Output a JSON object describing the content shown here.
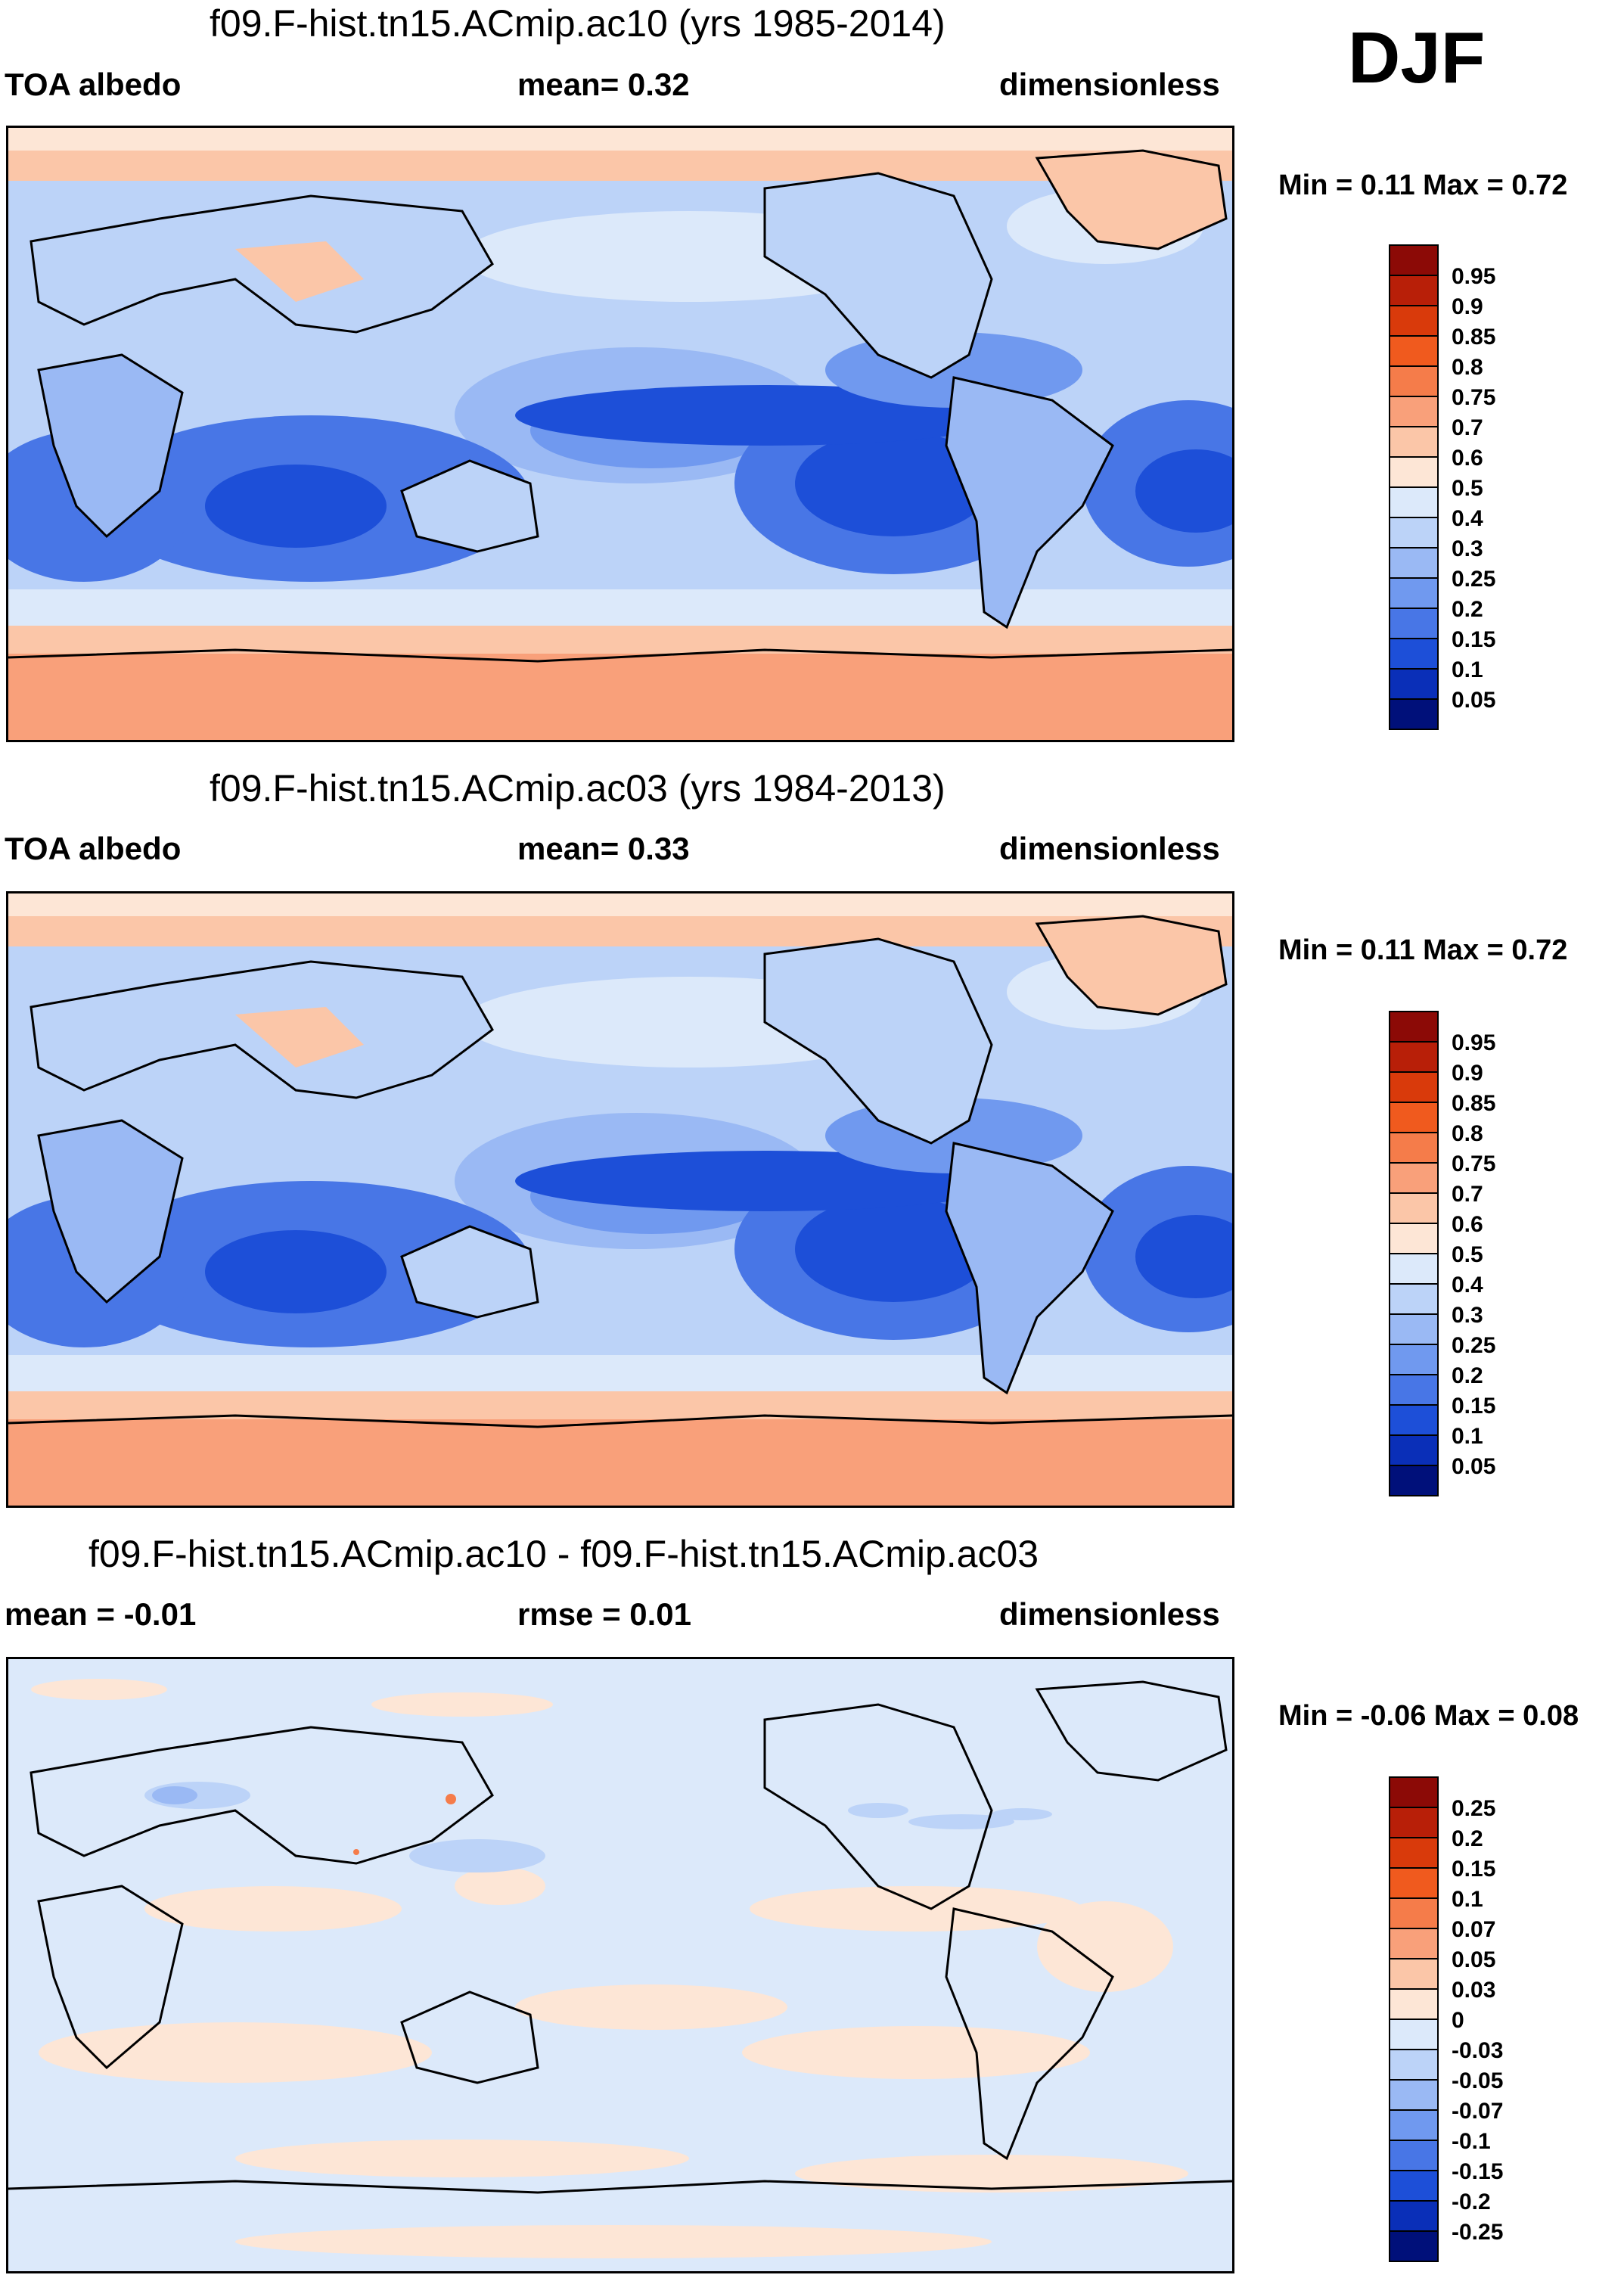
{
  "season": "DJF",
  "colorbars": {
    "abs": {
      "labels": [
        "0.95",
        "0.9",
        "0.85",
        "0.8",
        "0.75",
        "0.7",
        "0.6",
        "0.5",
        "0.4",
        "0.3",
        "0.25",
        "0.2",
        "0.15",
        "0.1",
        "0.05"
      ],
      "colors": [
        "#8c0a06",
        "#b81f08",
        "#d93a0b",
        "#f05a1e",
        "#f57c4a",
        "#f9a07a",
        "#fbc6a8",
        "#fde6d6",
        "#dce9fa",
        "#bcd3f8",
        "#9ab9f4",
        "#7099ef",
        "#4876e6",
        "#1d4fd8",
        "#0a2fb8",
        "#00107a"
      ]
    },
    "diff": {
      "labels": [
        "0.25",
        "0.2",
        "0.15",
        "0.1",
        "0.07",
        "0.05",
        "0.03",
        "0",
        "-0.03",
        "-0.05",
        "-0.07",
        "-0.1",
        "-0.15",
        "-0.2",
        "-0.25"
      ],
      "colors": [
        "#8c0a06",
        "#b81f08",
        "#d93a0b",
        "#f05a1e",
        "#f57c4a",
        "#f9a07a",
        "#fbc6a8",
        "#fde6d6",
        "#dce9fa",
        "#bcd3f8",
        "#9ab9f4",
        "#7099ef",
        "#4876e6",
        "#1d4fd8",
        "#0a2fb8",
        "#00107a"
      ]
    }
  },
  "panels": [
    {
      "title": "f09.F-hist.tn15.ACmip.ac10 (yrs 1985-2014)",
      "left_label": "TOA albedo",
      "center_label": "mean=   0.32",
      "right_label": "dimensionless",
      "minmax": "Min =   0.11 Max =   0.72",
      "kind": "abs"
    },
    {
      "title": "f09.F-hist.tn15.ACmip.ac03 (yrs 1984-2013)",
      "left_label": "TOA albedo",
      "center_label": "mean=   0.33",
      "right_label": "dimensionless",
      "minmax": "Min =   0.11 Max =   0.72",
      "kind": "abs"
    },
    {
      "title": "f09.F-hist.tn15.ACmip.ac10 - f09.F-hist.tn15.ACmip.ac03",
      "left_label": "mean =  -0.01",
      "center_label": "rmse =   0.01",
      "right_label": "dimensionless",
      "minmax": "Min =  -0.06 Max =   0.08",
      "kind": "diff"
    }
  ]
}
